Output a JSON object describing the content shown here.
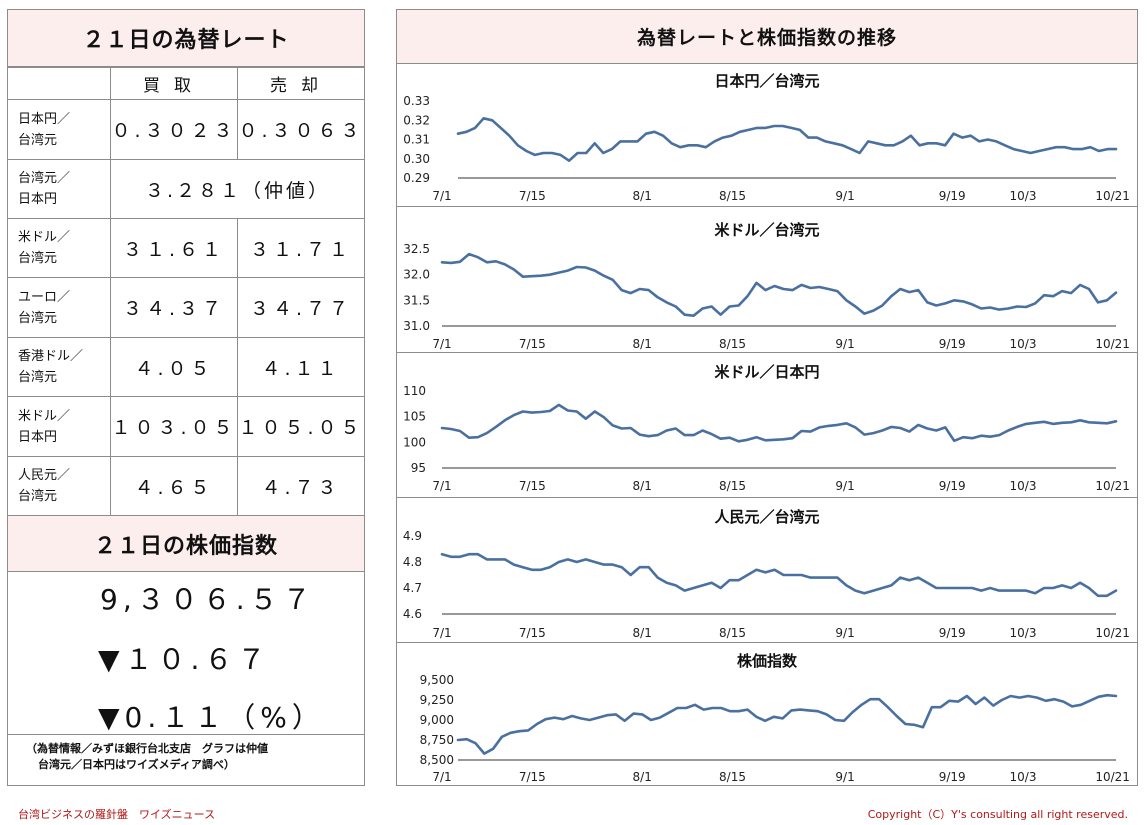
{
  "left": {
    "rate_title": "２１日の為替レート",
    "col_buy": "買取",
    "col_sell": "売却",
    "rows": [
      {
        "label1": "日本円／",
        "label2": "台湾元",
        "buy": "０.３０２３",
        "sell": "０.３０６３"
      },
      {
        "label1": "台湾元／",
        "label2": "日本円",
        "mid": "３.２８１（仲値）"
      },
      {
        "label1": "米ドル／",
        "label2": "台湾元",
        "buy": "３１.６１",
        "sell": "３１.７１"
      },
      {
        "label1": "ユーロ／",
        "label2": "台湾元",
        "buy": "３４.３７",
        "sell": "３４.７７"
      },
      {
        "label1": "香港ドル／",
        "label2": "台湾元",
        "buy": "４.０５",
        "sell": "４.１１"
      },
      {
        "label1": "米ドル／",
        "label2": "日本円",
        "buy": "１０３.０５",
        "sell": "１０５.０５"
      },
      {
        "label1": "人民元／",
        "label2": "台湾元",
        "buy": "４.６５",
        "sell": "４.７３"
      }
    ],
    "stock_title": "２１日の株価指数",
    "stock_value": "9,３０６.５７",
    "stock_change": "▼１０.６７",
    "stock_pct": "▼0.１１（%）",
    "source_line1": "（為替情報／みずほ銀行台北支店　グラフは仲値",
    "source_line2": "台湾元／日本円はワイズメディア調べ）"
  },
  "right": {
    "title": "為替レートと株価指数の推移"
  },
  "footer": {
    "left": "台湾ビジネスの羅針盤　ワイズニュース",
    "right": "Copyright（C）Y's consulting all right reserved."
  },
  "colors": {
    "line": "#4a70a0",
    "border": "#8c8c8c",
    "header_bg": "#fdeeee",
    "footer_text": "#b01818"
  },
  "chart_data": [
    {
      "type": "line",
      "title": "日本円／台湾元",
      "x_ticks": [
        "7/1",
        "7/15",
        "8/1",
        "8/15",
        "9/1",
        "9/19",
        "10/3",
        "10/21"
      ],
      "ylim": [
        0.29,
        0.33
      ],
      "y_ticks": [
        "0.33",
        "0.32",
        "0.31",
        "0.30",
        "0.29"
      ],
      "y_tick_values": [
        0.33,
        0.32,
        0.31,
        0.3,
        0.29
      ],
      "values": [
        0.313,
        0.314,
        0.316,
        0.321,
        0.32,
        0.316,
        0.312,
        0.307,
        0.304,
        0.302,
        0.303,
        0.303,
        0.302,
        0.299,
        0.303,
        0.303,
        0.308,
        0.303,
        0.305,
        0.309,
        0.309,
        0.309,
        0.313,
        0.314,
        0.312,
        0.308,
        0.306,
        0.307,
        0.307,
        0.306,
        0.309,
        0.311,
        0.312,
        0.314,
        0.315,
        0.316,
        0.316,
        0.317,
        0.317,
        0.316,
        0.315,
        0.311,
        0.311,
        0.309,
        0.308,
        0.307,
        0.305,
        0.303,
        0.309,
        0.308,
        0.307,
        0.307,
        0.309,
        0.312,
        0.307,
        0.308,
        0.308,
        0.307,
        0.313,
        0.311,
        0.312,
        0.309,
        0.31,
        0.309,
        0.307,
        0.305,
        0.304,
        0.303,
        0.304,
        0.305,
        0.306,
        0.306,
        0.305,
        0.305,
        0.306,
        0.304,
        0.305,
        0.305
      ]
    },
    {
      "type": "line",
      "title": "米ドル／台湾元",
      "x_ticks": [
        "7/1",
        "7/15",
        "8/1",
        "8/15",
        "9/1",
        "9/19",
        "10/3",
        "10/21"
      ],
      "ylim": [
        31.0,
        32.5
      ],
      "y_ticks": [
        "32.5",
        "32.0",
        "31.5",
        "31.0"
      ],
      "y_tick_values": [
        32.5,
        32.0,
        31.5,
        31.0
      ],
      "values": [
        32.24,
        32.23,
        32.25,
        32.4,
        32.34,
        32.24,
        32.26,
        32.2,
        32.1,
        31.96,
        31.97,
        31.98,
        32.0,
        32.04,
        32.08,
        32.15,
        32.14,
        32.08,
        31.98,
        31.9,
        31.7,
        31.64,
        31.72,
        31.7,
        31.56,
        31.46,
        31.38,
        31.22,
        31.2,
        31.34,
        31.38,
        31.22,
        31.38,
        31.4,
        31.58,
        31.84,
        31.7,
        31.78,
        31.72,
        31.7,
        31.8,
        31.74,
        31.76,
        31.72,
        31.68,
        31.5,
        31.38,
        31.24,
        31.3,
        31.4,
        31.58,
        31.72,
        31.66,
        31.7,
        31.46,
        31.4,
        31.44,
        31.5,
        31.48,
        31.42,
        31.34,
        31.36,
        31.32,
        31.34,
        31.38,
        31.37,
        31.44,
        31.6,
        31.58,
        31.68,
        31.64,
        31.8,
        31.72,
        31.46,
        31.5,
        31.65
      ]
    },
    {
      "type": "line",
      "title": "米ドル／日本円",
      "x_ticks": [
        "7/1",
        "7/15",
        "8/1",
        "8/15",
        "9/1",
        "9/19",
        "10/3",
        "10/21"
      ],
      "ylim": [
        95,
        110
      ],
      "y_ticks": [
        "110",
        "105",
        "100",
        "95"
      ],
      "y_tick_values": [
        110,
        105,
        100,
        95
      ],
      "values": [
        102.8,
        102.6,
        102.2,
        100.9,
        101.0,
        101.8,
        103.0,
        104.3,
        105.3,
        106.0,
        105.8,
        105.9,
        106.1,
        107.3,
        106.2,
        106.0,
        104.6,
        106.0,
        104.9,
        103.3,
        102.7,
        102.8,
        101.5,
        101.2,
        101.4,
        102.3,
        102.7,
        101.4,
        101.4,
        102.3,
        101.6,
        100.7,
        100.9,
        100.2,
        100.5,
        101.0,
        100.4,
        100.5,
        100.6,
        100.8,
        102.2,
        102.1,
        102.9,
        103.2,
        103.4,
        103.7,
        102.9,
        101.5,
        101.8,
        102.3,
        103.0,
        102.8,
        102.1,
        103.4,
        102.7,
        102.3,
        102.9,
        100.3,
        101.0,
        100.8,
        101.3,
        101.1,
        101.4,
        102.3,
        103.0,
        103.6,
        103.8,
        104.0,
        103.6,
        103.8,
        103.9,
        104.3,
        103.9,
        103.8,
        103.7,
        104.1
      ]
    },
    {
      "type": "line",
      "title": "人民元／台湾元",
      "x_ticks": [
        "7/1",
        "7/15",
        "8/1",
        "8/15",
        "9/1",
        "9/19",
        "10/3",
        "10/21"
      ],
      "ylim": [
        4.6,
        4.9
      ],
      "y_ticks": [
        "4.9",
        "4.8",
        "4.7",
        "4.6"
      ],
      "y_tick_values": [
        4.9,
        4.8,
        4.7,
        4.6
      ],
      "values": [
        4.83,
        4.82,
        4.82,
        4.83,
        4.83,
        4.81,
        4.81,
        4.81,
        4.79,
        4.78,
        4.77,
        4.77,
        4.78,
        4.8,
        4.81,
        4.8,
        4.81,
        4.8,
        4.79,
        4.79,
        4.78,
        4.75,
        4.78,
        4.78,
        4.74,
        4.72,
        4.71,
        4.69,
        4.7,
        4.71,
        4.72,
        4.7,
        4.73,
        4.73,
        4.75,
        4.77,
        4.76,
        4.77,
        4.75,
        4.75,
        4.75,
        4.74,
        4.74,
        4.74,
        4.74,
        4.71,
        4.69,
        4.68,
        4.69,
        4.7,
        4.71,
        4.74,
        4.73,
        4.74,
        4.72,
        4.7,
        4.7,
        4.7,
        4.7,
        4.7,
        4.69,
        4.7,
        4.69,
        4.69,
        4.69,
        4.69,
        4.68,
        4.7,
        4.7,
        4.71,
        4.7,
        4.72,
        4.7,
        4.67,
        4.67,
        4.69
      ]
    },
    {
      "type": "line",
      "title": "株価指数",
      "x_ticks": [
        "7/1",
        "7/15",
        "8/1",
        "8/15",
        "9/1",
        "9/19",
        "10/3",
        "10/21"
      ],
      "ylim": [
        8500,
        9500
      ],
      "y_ticks": [
        "9,500",
        "9,250",
        "9,000",
        "8,750",
        "8,500"
      ],
      "y_tick_values": [
        9500,
        9250,
        9000,
        8750,
        8500
      ],
      "values": [
        8750,
        8760,
        8710,
        8580,
        8640,
        8790,
        8840,
        8860,
        8870,
        8950,
        9010,
        9030,
        9010,
        9050,
        9020,
        9000,
        9030,
        9060,
        9070,
        8990,
        9080,
        9070,
        9000,
        9030,
        9090,
        9150,
        9150,
        9190,
        9130,
        9150,
        9150,
        9110,
        9110,
        9130,
        9040,
        8990,
        9040,
        9020,
        9120,
        9130,
        9120,
        9110,
        9070,
        9000,
        8990,
        9100,
        9190,
        9260,
        9260,
        9160,
        9050,
        8950,
        8940,
        8910,
        9160,
        9160,
        9240,
        9230,
        9300,
        9200,
        9280,
        9180,
        9250,
        9300,
        9280,
        9300,
        9280,
        9240,
        9260,
        9230,
        9170,
        9190,
        9240,
        9290,
        9310,
        9300
      ]
    }
  ]
}
